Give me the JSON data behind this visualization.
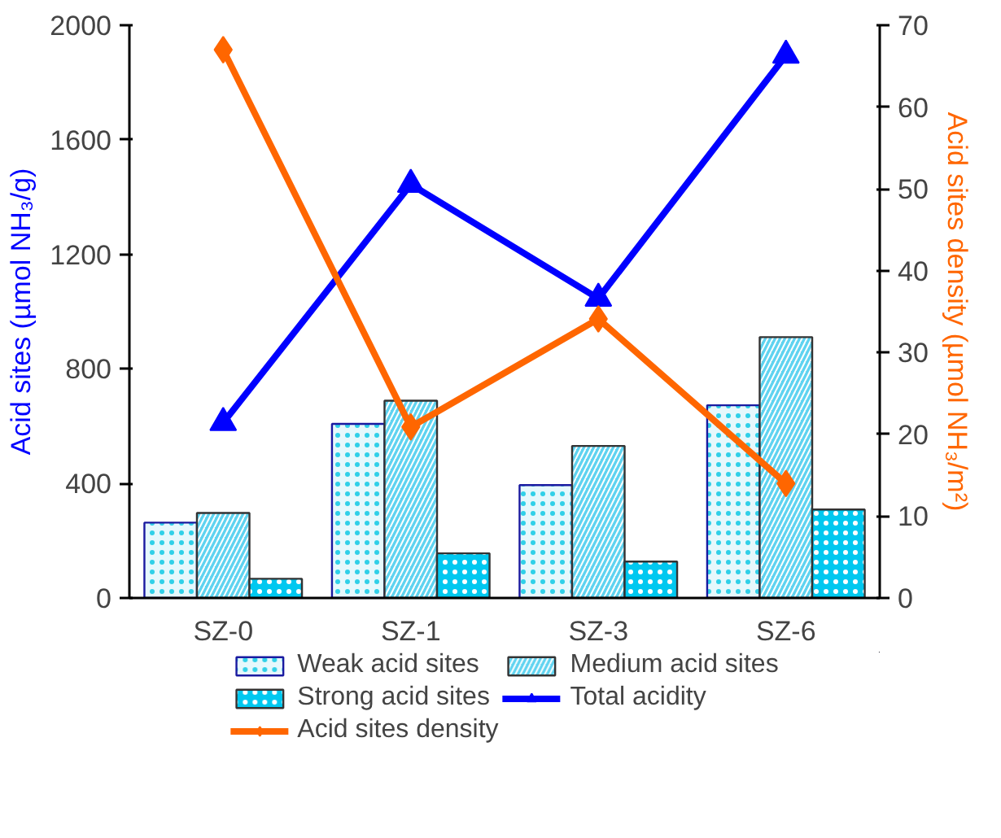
{
  "chart_data": {
    "type": "bar",
    "categories": [
      "SZ-0",
      "SZ-1",
      "SZ-3",
      "SZ-6"
    ],
    "ylabel": "Acid sites (µmol NH₃/g)",
    "y2label": "Acid sites density (µmol NH₃/m²)",
    "ylim": [
      0,
      2000
    ],
    "yticks": [
      0,
      400,
      800,
      1200,
      1600,
      2000
    ],
    "y2lim": [
      0,
      70
    ],
    "y2ticks": [
      0,
      10,
      20,
      30,
      40,
      50,
      60,
      70
    ],
    "legend": "bottom",
    "grid": false,
    "series": [
      {
        "name": "Weak acid sites",
        "color": "#e6f8fc",
        "values": [
          263,
          608,
          394,
          673
        ]
      },
      {
        "name": "Medium acid sites",
        "color": "#5fd3f0",
        "values": [
          297,
          689,
          531,
          911
        ]
      },
      {
        "name": "Strong acid sites",
        "color": "#00c8f0",
        "values": [
          67,
          156,
          127,
          309
        ]
      },
      {
        "name": "Total acidity",
        "type": "line",
        "color": "#0000ff",
        "marker": "triangle",
        "values": [
          612,
          1444,
          1046,
          1895
        ]
      },
      {
        "name": "Acid sites density",
        "type": "line",
        "color": "#ff6600",
        "marker": "diamond",
        "axis": "y2",
        "values": [
          67.0,
          20.9,
          34.1,
          14.0
        ]
      }
    ]
  }
}
